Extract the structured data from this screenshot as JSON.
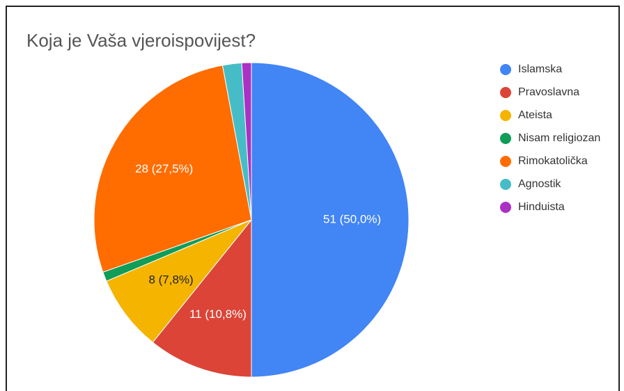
{
  "chart_data": {
    "type": "pie",
    "title": "Koja je Vaša vjeroispovijest?",
    "categories": [
      "Islamska",
      "Pravoslavna",
      "Ateista",
      "Nisam religiozan",
      "Rimokatolička",
      "Agnostik",
      "Hinduista"
    ],
    "values": [
      51,
      11,
      8,
      1,
      28,
      2,
      1
    ],
    "value_labels": [
      "51 (50,0%)",
      "11 (10,8%)",
      "8 (7,8%)",
      null,
      "28 (27,5%)",
      null,
      null
    ],
    "colors": [
      "#4285f4",
      "#db4437",
      "#f4b400",
      "#0f9d58",
      "#ff6d00",
      "#46bdc6",
      "#ab30c4"
    ],
    "legend": "right"
  }
}
